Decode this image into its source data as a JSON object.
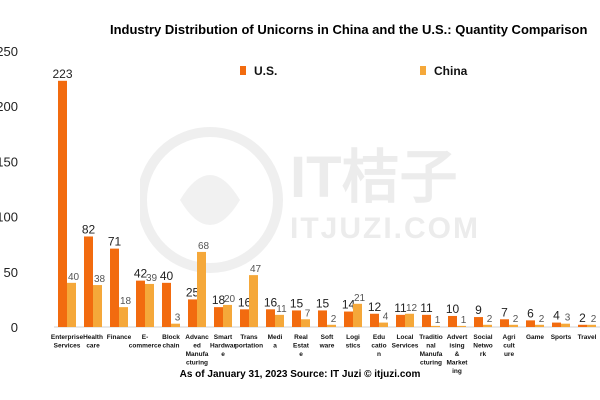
{
  "chart_data": {
    "type": "bar",
    "title": "Industry Distribution of Unicorns in China and the U.S.: Quantity Comparison",
    "footer": "As of January 31, 2023  Source: IT Juzi © itjuzi.com",
    "ylim": [
      0,
      250
    ],
    "yticks": [
      0,
      50,
      100,
      150,
      200,
      250
    ],
    "legend_position": "top",
    "grid": false,
    "categories": [
      "Enterprise Services",
      "Health care",
      "Finance",
      "E-commerce",
      "Block chain",
      "Advanced Manufacturing",
      "Smart Hardware",
      "Transportation",
      "Media",
      "Real Estate",
      "Software",
      "Logistics",
      "Education",
      "Local Services",
      "Traditional Manufacturing",
      "Advertising & Marketing",
      "Social Network",
      "Agriculture",
      "Game",
      "Sports",
      "Travel"
    ],
    "category_labels": [
      [
        "Enterprise",
        "Services"
      ],
      [
        "Health",
        "care"
      ],
      [
        "Finance"
      ],
      [
        "E-",
        "commerce"
      ],
      [
        "Block",
        "chain"
      ],
      [
        "Advanc",
        "ed",
        "Manufa",
        "cturing"
      ],
      [
        "Smart",
        "Hardwar",
        "e"
      ],
      [
        "Trans",
        "portation"
      ],
      [
        "Medi",
        "a"
      ],
      [
        "Real",
        "Estat",
        "e"
      ],
      [
        "Soft",
        "ware"
      ],
      [
        "Logi",
        "stics"
      ],
      [
        "Edu",
        "catio",
        "n"
      ],
      [
        "Local",
        "Services"
      ],
      [
        "Traditio",
        "nal",
        "Manufa",
        "cturing"
      ],
      [
        "Advert",
        "ising",
        "&",
        "Market",
        "ing"
      ],
      [
        "Social",
        "Netwo",
        "rk"
      ],
      [
        "Agri",
        "cult",
        "ure"
      ],
      [
        "Game"
      ],
      [
        "Sports"
      ],
      [
        "Travel"
      ]
    ],
    "series": [
      {
        "name": "U.S.",
        "color": "#f26b0f",
        "values": [
          223,
          82,
          71,
          42,
          40,
          25,
          18,
          16,
          16,
          15,
          15,
          14,
          12,
          11,
          11,
          10,
          9,
          7,
          6,
          4,
          2
        ]
      },
      {
        "name": "China",
        "color": "#f5a83a",
        "values": [
          40,
          38,
          18,
          39,
          3,
          68,
          20,
          47,
          11,
          7,
          2,
          21,
          4,
          12,
          1,
          1,
          2,
          2,
          2,
          3,
          2
        ]
      }
    ],
    "watermark": {
      "logo": "IT桔子",
      "url": "ITJUZI.COM"
    }
  }
}
